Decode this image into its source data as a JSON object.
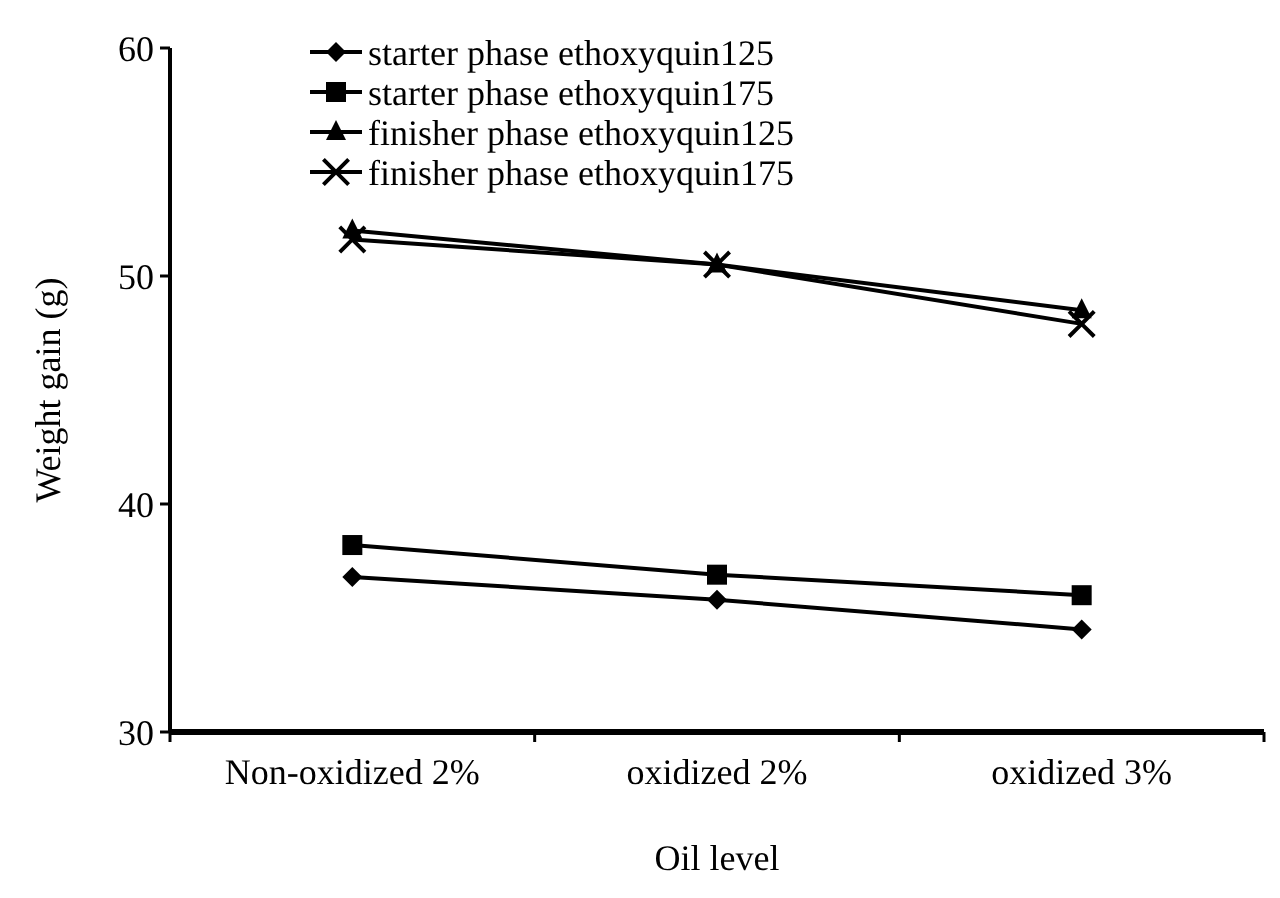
{
  "chart_data": {
    "type": "line",
    "xlabel": "Oil level",
    "ylabel": "Weight gain (g)",
    "categories": [
      "Non-oxidized 2%",
      "oxidized 2%",
      "oxidized 3%"
    ],
    "ylim": [
      30,
      60
    ],
    "yticks": [
      30,
      40,
      50,
      60
    ],
    "grid": false,
    "legend": "top left",
    "line_style": "solid",
    "series": [
      {
        "name": "starter phase ethoxyquin125",
        "color": "#000000",
        "marker": "diamond",
        "values": [
          36.8,
          35.8,
          34.5
        ]
      },
      {
        "name": "starter phase ethoxyquin175",
        "color": "#000000",
        "marker": "square",
        "values": [
          38.2,
          36.9,
          36.0
        ]
      },
      {
        "name": "finisher phase ethoxyquin125",
        "color": "#000000",
        "marker": "triangle",
        "values": [
          52.0,
          50.5,
          48.5
        ]
      },
      {
        "name": "finisher phase ethoxyquin175",
        "color": "#000000",
        "marker": "cross",
        "values": [
          51.6,
          50.5,
          47.9
        ]
      }
    ]
  }
}
